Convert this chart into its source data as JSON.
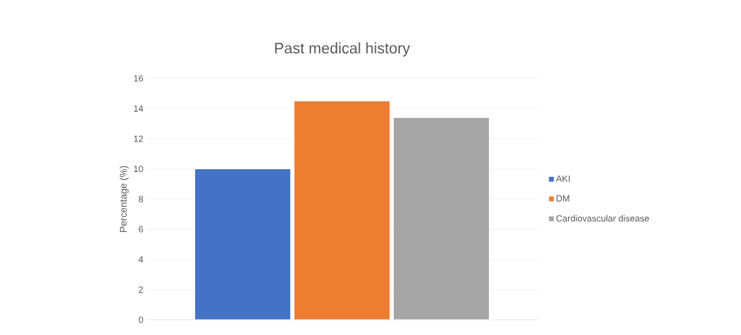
{
  "chart_data": {
    "type": "bar",
    "title": "Past medical history",
    "ylabel": "Percentage (%)",
    "categories": [
      null
    ],
    "series": [
      {
        "name": "AKI",
        "color": "#4472c4",
        "values": [
          10.0
        ]
      },
      {
        "name": "DM",
        "color": "#ed7d31",
        "values": [
          14.5
        ]
      },
      {
        "name": "Cardiovascular disease",
        "color": "#a5a5a5",
        "values": [
          13.4
        ]
      }
    ],
    "ylim": [
      0,
      16
    ],
    "yticks": [
      0,
      2,
      4,
      6,
      8,
      10,
      12,
      14,
      16
    ],
    "grid": "y",
    "legend": "right"
  }
}
